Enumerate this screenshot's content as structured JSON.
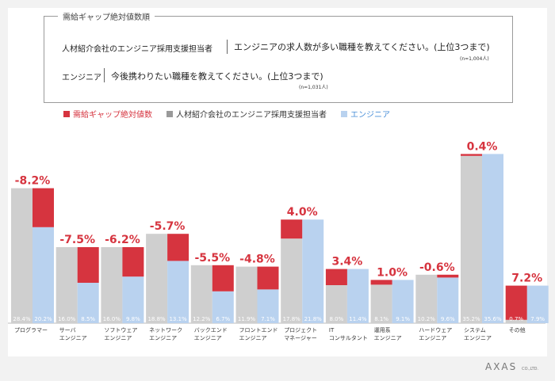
{
  "box": {
    "title": "需給ギャップ絶対値数順",
    "q1_label": "人材紹介会社のエンジニア採用支援担当者",
    "q1_text": "エンジニアの求人数が多い職種を教えてください。(上位3つまで)",
    "q1_n": "(n=1,004人)",
    "q2_label": "エンジニア",
    "q2_text": "今後携わりたい職種を教えてください。(上位3つまで)",
    "q2_n": "(n=1,031人)"
  },
  "legend": {
    "gap": "需給ギャップ絶対値数",
    "recruiter": "人材紹介会社のエンジニア採用支援担当者",
    "engineer": "エンジニア"
  },
  "colors": {
    "gap": "#d6343f",
    "recruiter": "#cfcfcf",
    "engineer": "#b9d2ef"
  },
  "logo": {
    "text": "AXAS",
    "sub": "CO.,LTD."
  },
  "chart_data": {
    "type": "bar",
    "ylim": [
      0,
      40
    ],
    "unit": "%",
    "categories": [
      [
        "プログラマー"
      ],
      [
        "サーバ",
        "エンジニア"
      ],
      [
        "ソフトウェア",
        "エンジニア"
      ],
      [
        "ネットワーク",
        "エンジニア"
      ],
      [
        "バックエンド",
        "エンジニア"
      ],
      [
        "フロントエンド",
        "エンジニア"
      ],
      [
        "プロジェクト",
        "マネージャー"
      ],
      [
        "IT",
        "コンサルタント"
      ],
      [
        "運用系",
        "エンジニア"
      ],
      [
        "ハードウェア",
        "エンジニア"
      ],
      [
        "システム",
        "エンジニア"
      ],
      [
        "その他"
      ]
    ],
    "series": [
      {
        "name": "人材紹介会社のエンジニア採用支援担当者",
        "values": [
          28.4,
          16.0,
          16.0,
          18.8,
          12.2,
          11.9,
          17.8,
          8.0,
          8.1,
          10.2,
          35.2,
          0.7
        ]
      },
      {
        "name": "エンジニア",
        "values": [
          20.2,
          8.5,
          9.8,
          13.1,
          6.7,
          7.1,
          21.8,
          11.4,
          9.1,
          9.6,
          35.6,
          7.9
        ]
      }
    ],
    "gap_labels": [
      "-8.2%",
      "-7.5%",
      "-6.2%",
      "-5.7%",
      "-5.5%",
      "-4.8%",
      "4.0%",
      "3.4%",
      "1.0%",
      "-0.6%",
      "0.4%",
      "7.2%"
    ],
    "value_labels_recruiter": [
      "28.4%",
      "16.0%",
      "16.0%",
      "18.8%",
      "12.2%",
      "11.9%",
      "17.8%",
      "8.0%",
      "8.1%",
      "10.2%",
      "35.2%",
      "0.7%"
    ],
    "value_labels_engineer": [
      "20.2%",
      "8.5%",
      "9.8%",
      "13.1%",
      "6.7%",
      "7.1%",
      "21.8%",
      "11.4%",
      "9.1%",
      "9.6%",
      "35.6%",
      "7.9%"
    ]
  }
}
